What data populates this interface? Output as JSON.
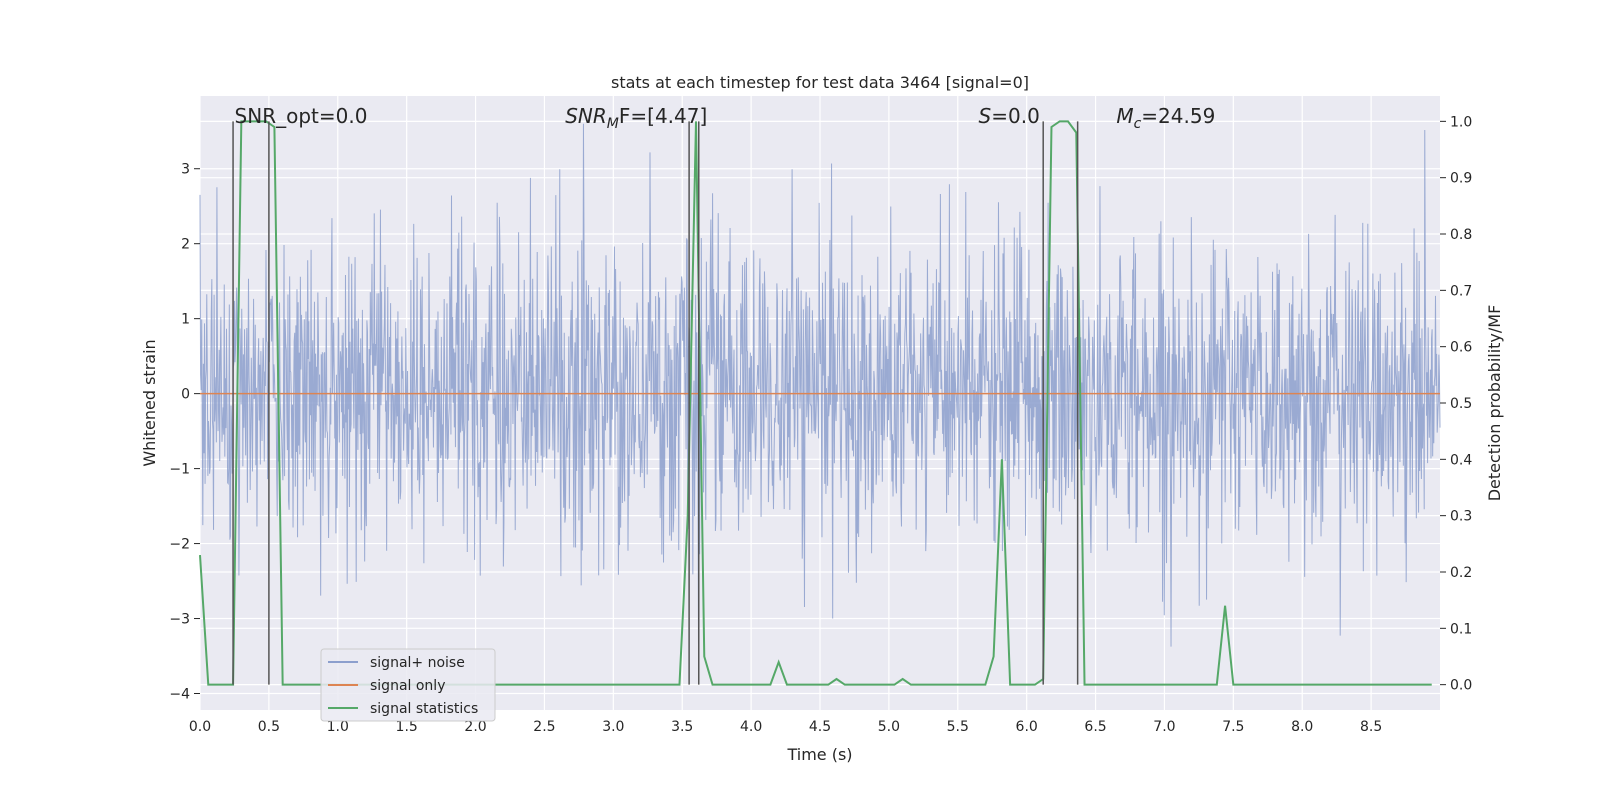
{
  "chart_data": {
    "type": "line",
    "title": "stats at each timestep for test data 3464 [signal=0]",
    "xlabel": "Time (s)",
    "ylabel_left": "Whitened strain",
    "ylabel_right": "Detection probability/MF",
    "xlim": [
      0,
      9.0
    ],
    "ylim_left": [
      -4.22,
      3.97
    ],
    "ylim_right": [
      -0.045,
      1.045
    ],
    "x_ticks": [
      "0.0",
      "0.5",
      "1.0",
      "1.5",
      "2.0",
      "2.5",
      "3.0",
      "3.5",
      "4.0",
      "4.5",
      "5.0",
      "5.5",
      "6.0",
      "6.5",
      "7.0",
      "7.5",
      "8.0",
      "8.5"
    ],
    "y_left_ticks": [
      "−4",
      "−3",
      "−2",
      "−1",
      "0",
      "1",
      "2",
      "3"
    ],
    "y_right_ticks": [
      "0.0",
      "0.1",
      "0.2",
      "0.3",
      "0.4",
      "0.5",
      "0.6",
      "0.7",
      "0.8",
      "0.9",
      "1.0"
    ],
    "grid": true,
    "legend_position": "lower-left",
    "annotations": [
      {
        "prefix": "SNR_opt=0.0",
        "sub": "",
        "suffix": "",
        "italic": false,
        "x_data": 0.2
      },
      {
        "prefix": "SNR",
        "sub": "M",
        "suffix": "F=[4.47]",
        "italic": true,
        "x_data": 2.6
      },
      {
        "prefix": "S",
        "sub": "",
        "suffix": "=0.0",
        "italic": true,
        "x_data": 5.6
      },
      {
        "prefix": "M",
        "sub": "c",
        "suffix": "=24.59",
        "italic": true,
        "x_data": 6.6
      }
    ],
    "vertical_lines": [
      0.24,
      0.5,
      3.55,
      3.62,
      6.12,
      6.37
    ],
    "series": [
      {
        "name": "signal+ noise",
        "color": "#8c9fcd",
        "axis": "left",
        "noise_envelope": {
          "sigma": 1.0,
          "peak_max": 3.6,
          "trough_min": -4.0
        }
      },
      {
        "name": "signal only",
        "color": "#dd8452",
        "axis": "left",
        "x": [
          0,
          9.0
        ],
        "y": [
          0,
          0
        ]
      },
      {
        "name": "signal statistics",
        "color": "#55a868",
        "axis": "right",
        "x": [
          0.0,
          0.06,
          0.12,
          0.18,
          0.24,
          0.3,
          0.36,
          0.42,
          0.48,
          0.54,
          0.6,
          0.66,
          0.72,
          3.42,
          3.48,
          3.54,
          3.6,
          3.66,
          3.72,
          3.78,
          4.08,
          4.14,
          4.2,
          4.26,
          4.32,
          4.56,
          4.62,
          4.68,
          5.04,
          5.1,
          5.16,
          5.22,
          5.7,
          5.76,
          5.82,
          5.88,
          5.94,
          6.0,
          6.06,
          6.12,
          6.18,
          6.24,
          6.3,
          6.36,
          6.42,
          6.48,
          6.54,
          7.38,
          7.44,
          7.5,
          7.56,
          8.94
        ],
        "y": [
          0.23,
          0.0,
          0.0,
          0.0,
          0.0,
          1.0,
          1.0,
          1.0,
          1.0,
          0.99,
          0.0,
          0.0,
          0.0,
          0.0,
          0.0,
          0.3,
          1.0,
          0.05,
          0.0,
          0.0,
          0.0,
          0.0,
          0.04,
          0.0,
          0.0,
          0.0,
          0.01,
          0.0,
          0.0,
          0.01,
          0.0,
          0.0,
          0.0,
          0.05,
          0.4,
          0.0,
          0.0,
          0.0,
          0.0,
          0.01,
          0.99,
          1.0,
          1.0,
          0.98,
          0.0,
          0.0,
          0.0,
          0.0,
          0.14,
          0.0,
          0.0,
          0.0
        ]
      }
    ]
  }
}
